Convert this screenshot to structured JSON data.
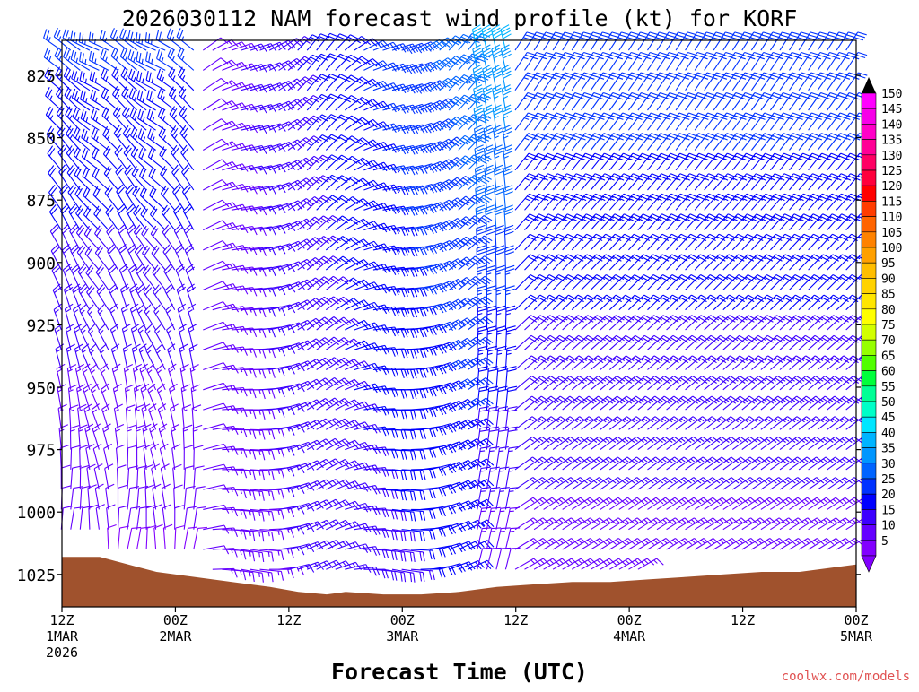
{
  "chart_data": {
    "type": "wind-barb",
    "title": "2026030112 NAM forecast wind profile (kt) for KORF",
    "xlabel": "Forecast Time (UTC)",
    "ylabel": "",
    "credit": "coolwx.com/models",
    "units": "kt",
    "y_axis": {
      "scale": "linear-pressure",
      "unit": "mb",
      "range": [
        1038,
        811
      ],
      "ticks": [
        "825",
        "850",
        "875",
        "900",
        "925",
        "950",
        "975",
        "1000",
        "1025"
      ]
    },
    "x_axis": {
      "range_hours": [
        0,
        84
      ],
      "ticks": [
        {
          "lines": [
            "12Z",
            "1MAR",
            "2026"
          ]
        },
        {
          "lines": [
            "00Z",
            "2MAR"
          ]
        },
        {
          "lines": [
            "12Z"
          ]
        },
        {
          "lines": [
            "00Z",
            "3MAR"
          ]
        },
        {
          "lines": [
            "12Z"
          ]
        },
        {
          "lines": [
            "00Z",
            "4MAR"
          ]
        },
        {
          "lines": [
            "12Z"
          ]
        },
        {
          "lines": [
            "00Z",
            "5MAR"
          ]
        }
      ]
    },
    "colorbar": {
      "labels": [
        "150",
        "145",
        "140",
        "135",
        "130",
        "125",
        "120",
        "115",
        "110",
        "105",
        "100",
        "95",
        "90",
        "85",
        "80",
        "75",
        "70",
        "65",
        "60",
        "55",
        "50",
        "45",
        "40",
        "35",
        "30",
        "25",
        "20",
        "15",
        "10",
        "5"
      ],
      "colors": [
        "#ff00ff",
        "#f700e8",
        "#ff00c8",
        "#ff0096",
        "#ff0064",
        "#ff003c",
        "#ff0000",
        "#ff3c00",
        "#ff6400",
        "#ff8200",
        "#ffa000",
        "#ffbe00",
        "#ffd200",
        "#ffe600",
        "#ffff00",
        "#d2ff00",
        "#96ff00",
        "#50ff00",
        "#00ff3c",
        "#00ff96",
        "#00ffc8",
        "#00e6ff",
        "#00b4ff",
        "#0096ff",
        "#0064ff",
        "#0032ff",
        "#0000ff",
        "#3c00ff",
        "#6400ff",
        "#8200ff"
      ]
    },
    "surface_pressure": [
      {
        "t": 0,
        "p": 1018
      },
      {
        "t": 4,
        "p": 1018
      },
      {
        "t": 6,
        "p": 1020
      },
      {
        "t": 8,
        "p": 1022
      },
      {
        "t": 10,
        "p": 1024
      },
      {
        "t": 14,
        "p": 1026
      },
      {
        "t": 18,
        "p": 1028
      },
      {
        "t": 22,
        "p": 1030
      },
      {
        "t": 25,
        "p": 1032
      },
      {
        "t": 28,
        "p": 1033
      },
      {
        "t": 30,
        "p": 1032
      },
      {
        "t": 34,
        "p": 1033
      },
      {
        "t": 38,
        "p": 1033
      },
      {
        "t": 42,
        "p": 1032
      },
      {
        "t": 46,
        "p": 1030
      },
      {
        "t": 50,
        "p": 1029
      },
      {
        "t": 54,
        "p": 1028
      },
      {
        "t": 58,
        "p": 1028
      },
      {
        "t": 62,
        "p": 1027
      },
      {
        "t": 66,
        "p": 1026
      },
      {
        "t": 70,
        "p": 1025
      },
      {
        "t": 74,
        "p": 1024
      },
      {
        "t": 78,
        "p": 1024
      },
      {
        "t": 82,
        "p": 1022
      },
      {
        "t": 84,
        "p": 1021
      }
    ]
  }
}
